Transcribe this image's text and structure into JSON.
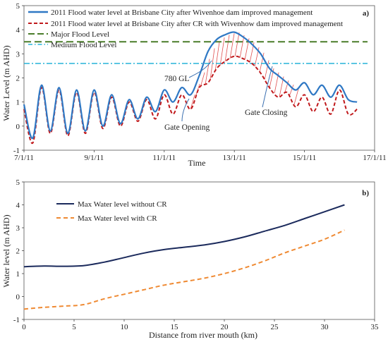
{
  "chart_data": [
    {
      "type": "line",
      "panel_label": "a)",
      "xlabel": "Time",
      "ylabel": "Water Level (m AHD)",
      "xlim": [
        "7/1/11",
        "17/1/11"
      ],
      "ylim": [
        -1,
        5
      ],
      "x_ticks": [
        "7/1/11",
        "9/1/11",
        "11/1/11",
        "13/1/11",
        "15/1/11",
        "17/1/11"
      ],
      "y_ticks": [
        "-1",
        "0",
        "1",
        "2",
        "3",
        "4",
        "5"
      ],
      "legend_position": "top-left",
      "colors": {
        "without_cr": "#2f78c4",
        "with_cr": "#c0181b",
        "major": "#4a7d2a",
        "medium": "#27b4d8",
        "hatch": "#e05050"
      },
      "series": [
        {
          "name": "2011 Flood water level at Brisbane City after Wivenhoe dam improved management",
          "style": "solid",
          "x": [
            "7/1/11 00:00",
            "7/1/11 06:00",
            "7/1/11 12:00",
            "7/1/11 18:00",
            "8/1/11 00:00",
            "8/1/11 06:00",
            "8/1/11 12:00",
            "8/1/11 18:00",
            "9/1/11 00:00",
            "9/1/11 06:00",
            "9/1/11 12:00",
            "9/1/11 18:00",
            "10/1/11 00:00",
            "10/1/11 06:00",
            "10/1/11 12:00",
            "10/1/11 18:00",
            "11/1/11 00:00",
            "11/1/11 06:00",
            "11/1/11 12:00",
            "11/1/11 18:00",
            "12/1/11 00:00",
            "12/1/11 06:00",
            "12/1/11 12:00",
            "12/1/11 18:00",
            "13/1/11 00:00",
            "13/1/11 06:00",
            "13/1/11 12:00",
            "13/1/11 18:00",
            "14/1/11 00:00",
            "14/1/11 06:00",
            "14/1/11 12:00",
            "14/1/11 18:00",
            "15/1/11 00:00",
            "15/1/11 06:00",
            "15/1/11 12:00",
            "15/1/11 18:00",
            "16/1/11 00:00",
            "16/1/11 06:00",
            "16/1/11 12:00"
          ],
          "y": [
            0.9,
            -0.5,
            1.7,
            -0.2,
            1.6,
            -0.3,
            1.5,
            -0.2,
            1.5,
            0.0,
            1.3,
            0.1,
            1.1,
            0.3,
            1.2,
            0.6,
            1.5,
            1.0,
            1.6,
            1.3,
            2.1,
            3.1,
            3.6,
            3.8,
            3.9,
            3.7,
            3.4,
            3.0,
            2.4,
            2.1,
            1.8,
            1.5,
            1.8,
            1.3,
            1.7,
            1.2,
            1.7,
            1.1,
            1.0
          ]
        },
        {
          "name": "2011 Flood water level at Brisbane City after CR with Wivenhow dam improved management",
          "style": "dashed",
          "x": [
            "7/1/11 00:00",
            "7/1/11 06:00",
            "7/1/11 12:00",
            "7/1/11 18:00",
            "8/1/11 00:00",
            "8/1/11 06:00",
            "8/1/11 12:00",
            "8/1/11 18:00",
            "9/1/11 00:00",
            "9/1/11 06:00",
            "9/1/11 12:00",
            "9/1/11 18:00",
            "10/1/11 00:00",
            "10/1/11 06:00",
            "10/1/11 12:00",
            "10/1/11 18:00",
            "11/1/11 00:00",
            "11/1/11 06:00",
            "11/1/11 12:00",
            "11/1/11 18:00",
            "12/1/11 00:00",
            "12/1/11 06:00",
            "12/1/11 12:00",
            "12/1/11 18:00",
            "13/1/11 00:00",
            "13/1/11 06:00",
            "13/1/11 12:00",
            "13/1/11 18:00",
            "14/1/11 00:00",
            "14/1/11 06:00",
            "14/1/11 12:00",
            "14/1/11 18:00",
            "15/1/11 00:00",
            "15/1/11 06:00",
            "15/1/11 12:00",
            "15/1/11 18:00",
            "16/1/11 00:00",
            "16/1/11 06:00",
            "16/1/11 12:00"
          ],
          "y": [
            0.7,
            -0.7,
            1.6,
            -0.3,
            1.5,
            -0.4,
            1.4,
            -0.3,
            1.4,
            -0.1,
            1.2,
            0.0,
            1.0,
            0.2,
            1.1,
            0.3,
            1.3,
            0.5,
            1.3,
            0.7,
            1.6,
            1.8,
            2.4,
            2.7,
            2.9,
            2.8,
            2.6,
            2.2,
            1.6,
            1.2,
            1.4,
            0.8,
            1.3,
            0.6,
            1.2,
            0.5,
            1.5,
            0.5,
            0.7
          ]
        },
        {
          "name": "Major Flood Level",
          "style": "long-dash",
          "constant_y": 3.5
        },
        {
          "name": "Medium Flood Level",
          "style": "dash-dot",
          "constant_y": 2.6
        }
      ],
      "annotations": [
        {
          "text": "780 GL",
          "x": "11/1/11 18:00",
          "y": 2.25
        },
        {
          "text": "Gate Opening",
          "x": "11/1/11 12:00",
          "y": 0.35
        },
        {
          "text": "Gate Closing",
          "x": "13/1/11 12:00",
          "y": 1.05
        }
      ]
    },
    {
      "type": "line",
      "panel_label": "b)",
      "xlabel": "Distance from river mouth (km)",
      "ylabel": "Water level (m AHD)",
      "xlim": [
        0,
        35
      ],
      "ylim": [
        -1,
        5
      ],
      "x_ticks": [
        "0",
        "5",
        "10",
        "15",
        "20",
        "25",
        "30",
        "35"
      ],
      "y_ticks": [
        "-1",
        "0",
        "1",
        "2",
        "3",
        "4",
        "5"
      ],
      "legend_position": "top-left",
      "colors": {
        "without_cr": "#1b2a5c",
        "with_cr": "#ef8a33"
      },
      "series": [
        {
          "name": "Max Water level without CR",
          "style": "solid",
          "x": [
            0,
            2,
            4,
            6,
            8,
            10,
            12,
            14,
            16,
            18,
            20,
            22,
            24,
            26,
            28,
            30,
            32
          ],
          "y": [
            1.3,
            1.33,
            1.32,
            1.35,
            1.5,
            1.7,
            1.9,
            2.05,
            2.15,
            2.25,
            2.4,
            2.6,
            2.85,
            3.1,
            3.4,
            3.7,
            4.0
          ]
        },
        {
          "name": "Max Water level with CR",
          "style": "dashed",
          "x": [
            0,
            2,
            4,
            6,
            8,
            10,
            12,
            14,
            16,
            18,
            20,
            22,
            24,
            26,
            28,
            30,
            32
          ],
          "y": [
            -0.55,
            -0.47,
            -0.42,
            -0.35,
            -0.1,
            0.1,
            0.3,
            0.5,
            0.65,
            0.8,
            1.0,
            1.25,
            1.55,
            1.9,
            2.2,
            2.5,
            2.9
          ]
        }
      ]
    }
  ]
}
